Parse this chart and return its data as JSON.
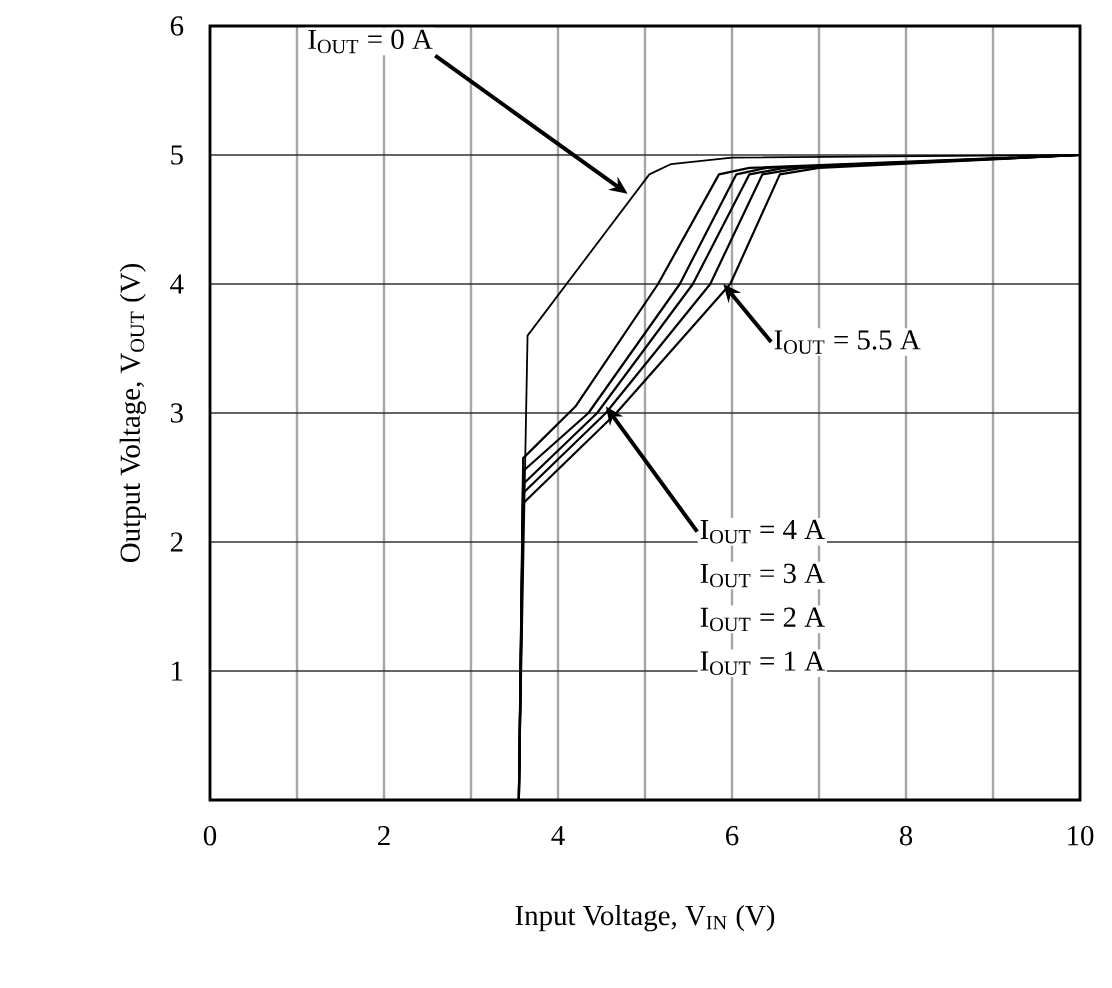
{
  "chart_data": {
    "type": "line",
    "xlabel": "Input Voltage, V$_{IN}$ (V)",
    "ylabel": "Output Voltage, V$_{OUT}$ (V)",
    "xlim": [
      0,
      10
    ],
    "ylim": [
      0,
      6
    ],
    "xticks": [
      0,
      {
        "value": 1,
        "label": null
      },
      2,
      {
        "value": 3,
        "label": null
      },
      4,
      {
        "value": 5,
        "label": null
      },
      6,
      {
        "value": 7,
        "label": null
      },
      8,
      {
        "value": 9,
        "label": null
      },
      10
    ],
    "yticks": [
      {
        "value": 0,
        "label": null
      },
      1,
      2,
      3,
      4,
      5,
      6
    ],
    "grid": true,
    "series": [
      {
        "color": "#000000",
        "x": [
          0,
          3.55,
          3.65,
          5.05,
          5.3,
          6.0,
          10
        ],
        "values": [
          0,
          0,
          3.6,
          4.85,
          4.93,
          4.98,
          5.0
        ]
      },
      {
        "color": "#000000",
        "x": [
          0,
          3.55,
          3.6,
          4.2,
          5.15,
          5.85,
          6.2,
          10
        ],
        "values": [
          0,
          0,
          2.65,
          3.05,
          4.0,
          4.85,
          4.9,
          5.0
        ]
      },
      {
        "color": "#000000",
        "x": [
          0,
          3.55,
          3.6,
          4.35,
          5.4,
          6.05,
          6.4,
          10
        ],
        "values": [
          0,
          0,
          2.55,
          3.0,
          4.0,
          4.85,
          4.9,
          5.0
        ]
      },
      {
        "color": "#000000",
        "x": [
          0,
          3.55,
          3.6,
          4.45,
          5.55,
          6.2,
          6.6,
          10
        ],
        "values": [
          0,
          0,
          2.45,
          3.0,
          4.0,
          4.85,
          4.9,
          5.0
        ]
      },
      {
        "color": "#000000",
        "x": [
          0,
          3.55,
          3.6,
          4.55,
          5.75,
          6.35,
          6.8,
          10
        ],
        "values": [
          0,
          0,
          2.38,
          3.0,
          4.0,
          4.85,
          4.9,
          5.0
        ]
      },
      {
        "color": "#000000",
        "x": [
          0,
          3.55,
          3.6,
          4.67,
          5.98,
          6.55,
          7.0,
          10
        ],
        "values": [
          0,
          0,
          2.3,
          3.0,
          4.0,
          4.85,
          4.9,
          5.0
        ]
      }
    ],
    "annotations": [
      {
        "text": "I$_{OUT}$ = 0 A",
        "x": 4.8,
        "y": 4.7
      },
      {
        "text": "I$_{OUT}$ = 5.5 A",
        "x": 5.9,
        "y": 4.0
      },
      {
        "text": "I$_{OUT}$ = 4 A",
        "x": 4.55,
        "y": 3.05
      },
      "I$_{OUT}$ = 3 A",
      "I$_{OUT}$ = 2 A",
      "I$_{OUT}$ = 1 A"
    ]
  }
}
